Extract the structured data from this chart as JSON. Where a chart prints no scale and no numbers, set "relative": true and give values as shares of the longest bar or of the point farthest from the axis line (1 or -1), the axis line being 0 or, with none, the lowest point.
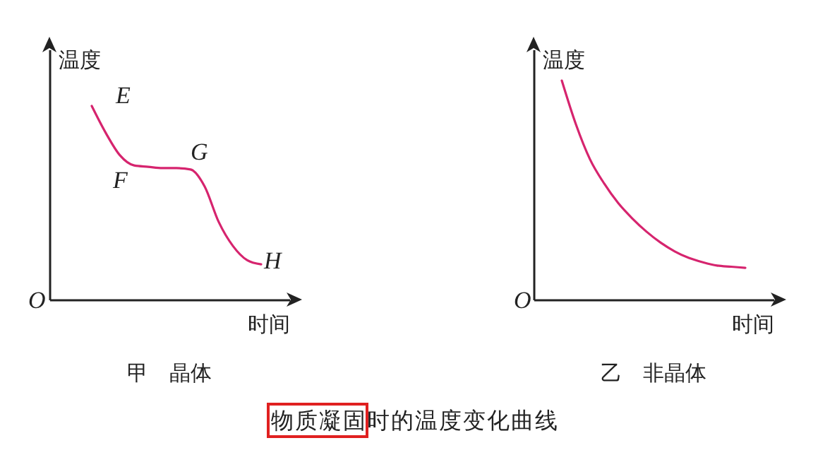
{
  "chart_data": [
    {
      "type": "line",
      "title": "甲　晶体",
      "xlabel": "时间",
      "ylabel": "温度",
      "relative": true,
      "grid": false,
      "annotations": [
        "E",
        "F",
        "G",
        "H",
        "O"
      ],
      "categories": [
        null,
        null,
        null,
        null,
        null,
        null,
        null,
        null,
        null,
        null,
        null,
        null,
        null,
        null,
        null,
        null,
        null,
        null
      ],
      "series": [
        {
          "color": "#d6246e",
          "values": [
            null,
            null,
            null,
            1.0,
            0.86,
            0.745,
            0.693,
            0.686,
            0.679,
            0.679,
            0.672,
            0.584,
            0.4,
            0.277,
            0.204,
            0.182,
            null,
            null
          ]
        }
      ]
    },
    {
      "type": "line",
      "title": "乙　非晶体",
      "xlabel": "时间",
      "ylabel": "温度",
      "relative": true,
      "grid": false,
      "annotations": [
        "O"
      ],
      "categories": [
        null,
        null,
        null,
        null,
        null,
        null,
        null,
        null,
        null,
        null,
        null,
        null,
        null,
        null,
        null,
        null,
        null,
        null
      ],
      "series": [
        {
          "color": "#d6246e",
          "values": [
            null,
            null,
            1.0,
            0.8,
            0.64,
            0.53,
            0.44,
            0.37,
            0.31,
            0.26,
            0.22,
            0.19,
            0.17,
            0.155,
            0.15,
            0.145,
            null,
            null
          ]
        }
      ]
    },
    {
      "type": "other",
      "annotations": [
        "物质凝固时的温度变化曲线"
      ]
    }
  ]
}
